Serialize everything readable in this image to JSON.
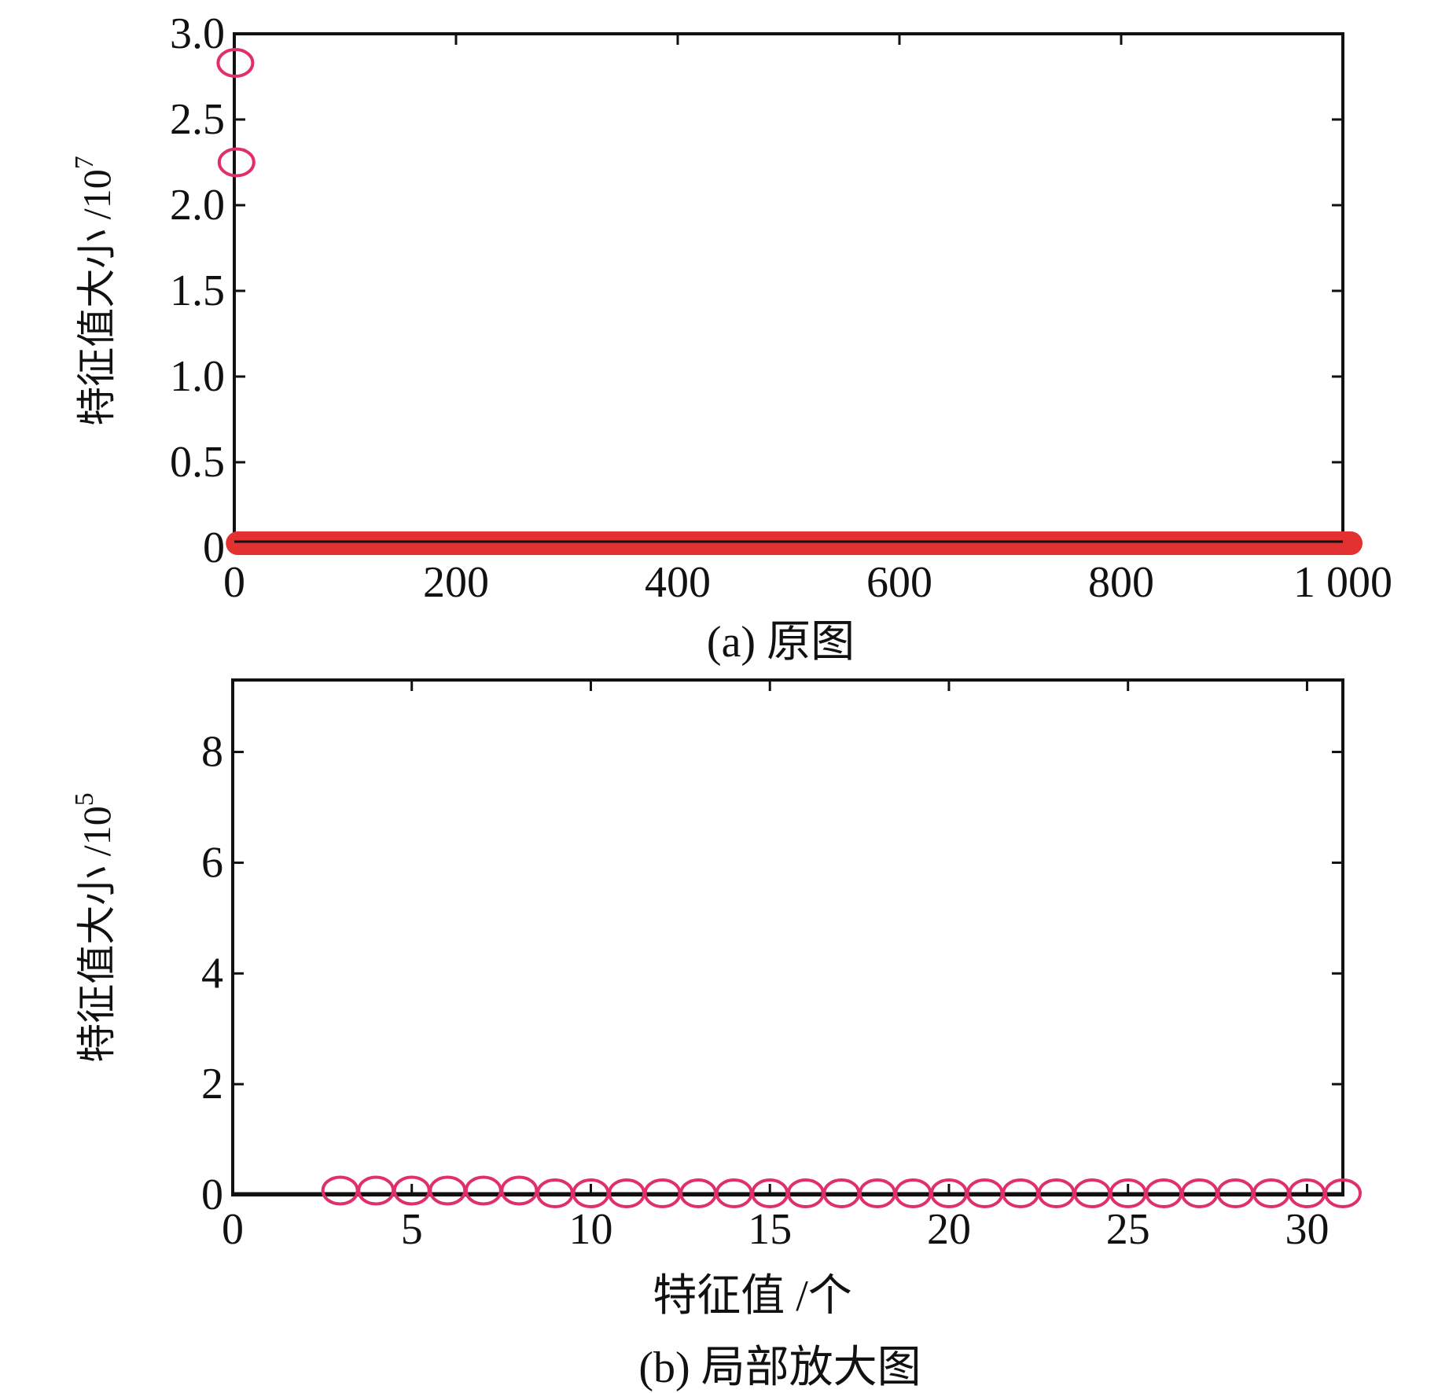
{
  "chart_data": [
    {
      "type": "scatter",
      "caption": "(a) 原图",
      "ylabel": "特征值大小 /10",
      "ylabel_exponent": "7",
      "xlabel": "",
      "xlim": [
        0,
        1000
      ],
      "ylim": [
        0,
        3.0
      ],
      "xticks": [
        0,
        200,
        400,
        600,
        800,
        1000
      ],
      "xtick_labels": [
        "0",
        "200",
        "400",
        "600",
        "800",
        "1 000"
      ],
      "yticks": [
        0,
        0.5,
        1.0,
        1.5,
        2.0,
        2.5,
        3.0
      ],
      "ytick_labels": [
        "0",
        "0.5",
        "1.0",
        "1.5",
        "2.0",
        "2.5",
        "3.0"
      ],
      "marker": "circle-open",
      "marker_color": "#e0306a",
      "band_color": "#e33030",
      "series": [
        {
          "x": [
            1,
            2
          ],
          "y": [
            2.83,
            2.25
          ],
          "near_zero_points": {
            "x_from": 3,
            "x_to": 1000,
            "y": 0
          }
        }
      ]
    },
    {
      "type": "scatter",
      "caption": "(b) 局部放大图",
      "ylabel": "特征值大小 /10",
      "ylabel_exponent": "5",
      "xlabel": "特征值 /个",
      "xlim": [
        0,
        31
      ],
      "ylim": [
        0,
        9.3
      ],
      "xticks": [
        0,
        5,
        10,
        15,
        20,
        25,
        30
      ],
      "xtick_labels": [
        "0",
        "5",
        "10",
        "15",
        "20",
        "25",
        "30"
      ],
      "yticks": [
        0,
        2,
        4,
        6,
        8
      ],
      "ytick_labels": [
        "0",
        "2",
        "4",
        "6",
        "8"
      ],
      "marker": "circle-open",
      "marker_color": "#e0306a",
      "series": [
        {
          "x": [
            3,
            4,
            5,
            6,
            7,
            8,
            9,
            10,
            11,
            12,
            13,
            14,
            15,
            16,
            17,
            18,
            19,
            20,
            21,
            22,
            23,
            24,
            25,
            26,
            27,
            28,
            29,
            30,
            31
          ],
          "y": [
            0.05,
            0.05,
            0.05,
            0.05,
            0.05,
            0.05,
            0.0,
            0.0,
            0.0,
            0.0,
            0.0,
            0.0,
            0.0,
            0.0,
            0.0,
            0.0,
            0.0,
            0.0,
            0.0,
            0.0,
            0.0,
            0.0,
            0.0,
            0.0,
            0.0,
            0.0,
            0.0,
            0.0,
            0.0
          ]
        }
      ]
    }
  ]
}
